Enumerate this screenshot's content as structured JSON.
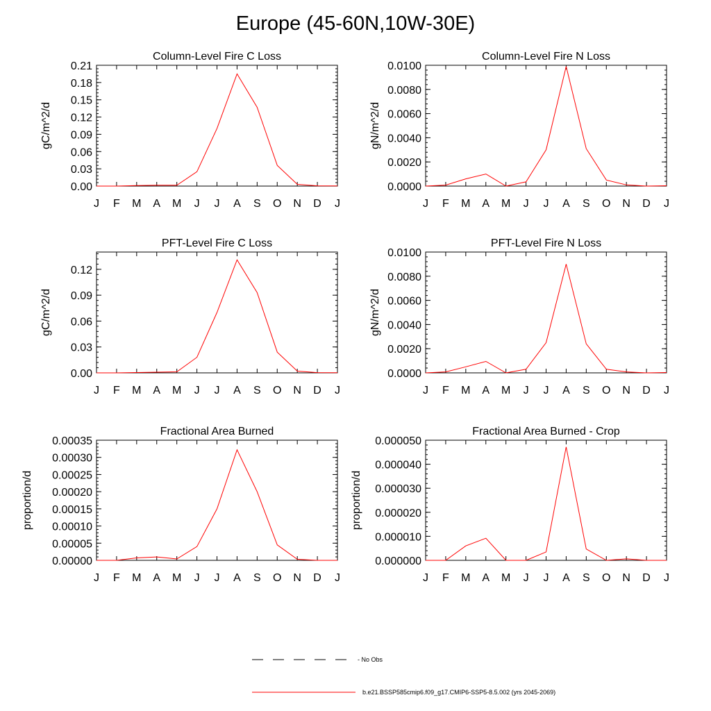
{
  "figure": {
    "title": "Europe (45-60N,10W-30E)",
    "line_color": "#ff0000"
  },
  "legend": {
    "items": [
      {
        "label": "No Obs",
        "style": "dashed",
        "color": "#000000"
      },
      {
        "label": "b.e21.BSSP585cmip6.f09_g17.CMIP6-SSP5-8.5.002 (yrs 2045-2069)",
        "style": "solid",
        "color": "#ff0000"
      }
    ]
  },
  "chart_data": [
    {
      "type": "line",
      "title": "Column-Level Fire C Loss",
      "ylabel": "gC/m^2/d",
      "xlabel": "",
      "x": [
        "J",
        "F",
        "M",
        "A",
        "M",
        "J",
        "J",
        "A",
        "S",
        "O",
        "N",
        "D",
        "J"
      ],
      "ylim": [
        0,
        0.21
      ],
      "yticks": [
        "0.00",
        "0.03",
        "0.06",
        "0.09",
        "0.12",
        "0.15",
        "0.18",
        "0.21"
      ],
      "series": [
        {
          "name": "b.e21.BSSP585cmip6.f09_g17.CMIP6-SSP5-8.5.002 (yrs 2045-2069)",
          "values": [
            0.0,
            0.0,
            0.0008,
            0.0015,
            0.0015,
            0.025,
            0.1,
            0.195,
            0.137,
            0.036,
            0.003,
            0.0005,
            0.0003
          ]
        }
      ]
    },
    {
      "type": "line",
      "title": "Column-Level Fire N Loss",
      "ylabel": "gN/m^2/d",
      "xlabel": "",
      "x": [
        "J",
        "F",
        "M",
        "A",
        "M",
        "J",
        "J",
        "A",
        "S",
        "O",
        "N",
        "D",
        "J"
      ],
      "ylim": [
        0,
        0.01
      ],
      "yticks": [
        "0.0000",
        "0.0020",
        "0.0040",
        "0.0060",
        "0.0080",
        "0.0100"
      ],
      "series": [
        {
          "name": "b.e21.BSSP585cmip6.f09_g17.CMIP6-SSP5-8.5.002 (yrs 2045-2069)",
          "values": [
            0.0,
            8e-05,
            0.0006,
            0.001,
            0.0,
            0.00035,
            0.003,
            0.0099,
            0.0031,
            0.0005,
            0.0001,
            0.0,
            3e-05
          ]
        }
      ]
    },
    {
      "type": "line",
      "title": "PFT-Level Fire C Loss",
      "ylabel": "gC/m^2/d",
      "xlabel": "",
      "x": [
        "J",
        "F",
        "M",
        "A",
        "M",
        "J",
        "J",
        "A",
        "S",
        "O",
        "N",
        "D",
        "J"
      ],
      "ylim": [
        0,
        0.14
      ],
      "yticks": [
        "0.00",
        "0.03",
        "0.06",
        "0.09",
        "0.12"
      ],
      "ytick_values": [
        0,
        0.03,
        0.06,
        0.09,
        0.12
      ],
      "series": [
        {
          "name": "b.e21.BSSP585cmip6.f09_g17.CMIP6-SSP5-8.5.002 (yrs 2045-2069)",
          "values": [
            0.0,
            0.0,
            0.0004,
            0.0008,
            0.0012,
            0.018,
            0.07,
            0.131,
            0.093,
            0.024,
            0.002,
            0.0003,
            0.0002
          ]
        }
      ]
    },
    {
      "type": "line",
      "title": "PFT-Level Fire N Loss",
      "ylabel": "gN/m^2/d",
      "xlabel": "",
      "x": [
        "J",
        "F",
        "M",
        "A",
        "M",
        "J",
        "J",
        "A",
        "S",
        "O",
        "N",
        "D",
        "J"
      ],
      "ylim": [
        0,
        0.01
      ],
      "yticks": [
        "0.0000",
        "0.0020",
        "0.0040",
        "0.0060",
        "0.0080",
        "0.0100"
      ],
      "series": [
        {
          "name": "b.e21.BSSP585cmip6.f09_g17.CMIP6-SSP5-8.5.002 (yrs 2045-2069)",
          "values": [
            0.0,
            8e-05,
            0.0005,
            0.00095,
            0.0,
            0.0003,
            0.0025,
            0.009,
            0.0024,
            0.0003,
            8e-05,
            0.0,
            3e-05
          ]
        }
      ]
    },
    {
      "type": "line",
      "title": "Fractional Area Burned",
      "ylabel": "proportion/d",
      "xlabel": "",
      "x": [
        "J",
        "F",
        "M",
        "A",
        "M",
        "J",
        "J",
        "A",
        "S",
        "O",
        "N",
        "D",
        "J"
      ],
      "ylim": [
        0,
        0.00035
      ],
      "yticks": [
        "0.00000",
        "0.00005",
        "0.00010",
        "0.00015",
        "0.00020",
        "0.00025",
        "0.00030",
        "0.00035"
      ],
      "series": [
        {
          "name": "b.e21.BSSP585cmip6.f09_g17.CMIP6-SSP5-8.5.002 (yrs 2045-2069)",
          "values": [
            0.0,
            0.0,
            7e-06,
            1e-05,
            4e-06,
            4e-05,
            0.00015,
            0.000322,
            0.0002,
            4.5e-05,
            3e-06,
            0.0,
            0.0
          ]
        }
      ]
    },
    {
      "type": "line",
      "title": "Fractional Area Burned - Crop",
      "ylabel": "proportion/d",
      "xlabel": "",
      "x": [
        "J",
        "F",
        "M",
        "A",
        "M",
        "J",
        "J",
        "A",
        "S",
        "O",
        "N",
        "D",
        "J"
      ],
      "ylim": [
        0,
        5e-05
      ],
      "yticks": [
        "0.000000",
        "0.000010",
        "0.000020",
        "0.000030",
        "0.000040",
        "0.000050"
      ],
      "series": [
        {
          "name": "b.e21.BSSP585cmip6.f09_g17.CMIP6-SSP5-8.5.002 (yrs 2045-2069)",
          "values": [
            0.0,
            0.0,
            6e-06,
            9.2e-06,
            0.0,
            0.0,
            3.5e-06,
            4.72e-05,
            4.7e-06,
            0.0,
            6e-07,
            0.0,
            0.0
          ]
        }
      ]
    }
  ]
}
